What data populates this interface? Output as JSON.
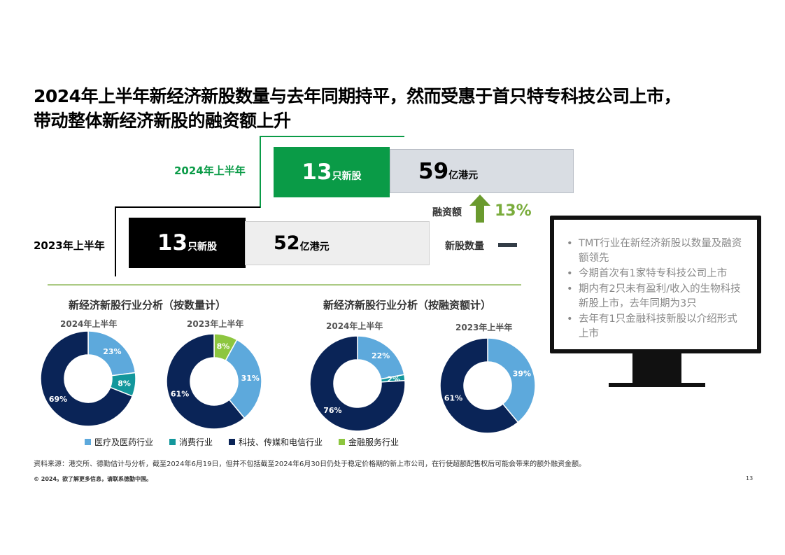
{
  "title": {
    "line1": "2024年上半年新经济新股数量与去年同期持平，然而受惠于首只特专科技公司上市，",
    "line2": "带动整体新经济新股的融资额上升"
  },
  "summary": {
    "h2024": {
      "label": "2024年上半年",
      "count": "13",
      "count_unit": "只新股",
      "amount": "59",
      "amount_unit": "亿港元"
    },
    "h2023": {
      "label": "2023年上半年",
      "count": "13",
      "count_unit": "只新股",
      "amount": "52",
      "amount_unit": "亿港元"
    },
    "growth_label": "融资额",
    "growth_value": "13%",
    "flat_label": "新股数量"
  },
  "colors": {
    "green": "#0a9b47",
    "lime": "#7aac3c",
    "black": "#000000",
    "gray_light": "#d9dde3",
    "gray_lighter": "#eeeeee",
    "medical": "#5da9dc",
    "consumer": "#13979c",
    "tmt": "#0a2457",
    "finance": "#8dc63f"
  },
  "chart_titles": {
    "by_count": "新经济新股行业分析（按数量计）",
    "by_amount": "新经济新股行业分析（按融资额计）"
  },
  "chart_data": [
    {
      "type": "pie",
      "title": "新经济新股行业分析（按数量计）",
      "period": "2024年上半年",
      "labels": [
        "医疗及医药行业",
        "消费行业",
        "科技、传媒和电信行业"
      ],
      "values": [
        23,
        8,
        69
      ],
      "display": [
        "23%",
        "8%",
        "69%"
      ]
    },
    {
      "type": "pie",
      "title": "新经济新股行业分析（按数量计）",
      "period": "2023年上半年",
      "labels": [
        "金融服务行业",
        "医疗及医药行业",
        "科技、传媒和电信行业"
      ],
      "values": [
        8,
        31,
        61
      ],
      "display": [
        "8%",
        "31%",
        "61%"
      ]
    },
    {
      "type": "pie",
      "title": "新经济新股行业分析（按融资额计）",
      "period": "2024年上半年",
      "labels": [
        "医疗及医药行业",
        "消费行业",
        "科技、传媒和电信行业"
      ],
      "values": [
        22,
        2,
        76
      ],
      "display": [
        "22%",
        "2%",
        "76%"
      ]
    },
    {
      "type": "pie",
      "title": "新经济新股行业分析（按融资额计）",
      "period": "2023年上半年",
      "labels": [
        "医疗及医药行业",
        "科技、传媒和电信行业"
      ],
      "values": [
        39,
        61
      ],
      "display": [
        "39%",
        "61%"
      ]
    }
  ],
  "legend": [
    {
      "label": "医疗及医药行业",
      "color": "#5da9dc"
    },
    {
      "label": "消费行业",
      "color": "#13979c"
    },
    {
      "label": "科技、传媒和电信行业",
      "color": "#0a2457"
    },
    {
      "label": "金融服务行业",
      "color": "#8dc63f"
    }
  ],
  "bullets": [
    "TMT行业在新经济新股以数量及融资额领先",
    "今期首次有1家特专科技公司上市",
    "期内有2只未有盈利/收入的生物科技新股上市，去年同期为3只",
    "去年有1只金融科技新股以介绍形式上市"
  ],
  "footer": {
    "source": "资料来源：港交所、德勤估计与分析，截至2024年6月19日，但并不包括截至2024年6月30日仍处于稳定价格期的新上市公司，在行使超额配售权后可能会带来的额外融资金额。",
    "copyright": "© 2024。欲了解更多信息，请联系德勤中国。",
    "page": "13"
  }
}
